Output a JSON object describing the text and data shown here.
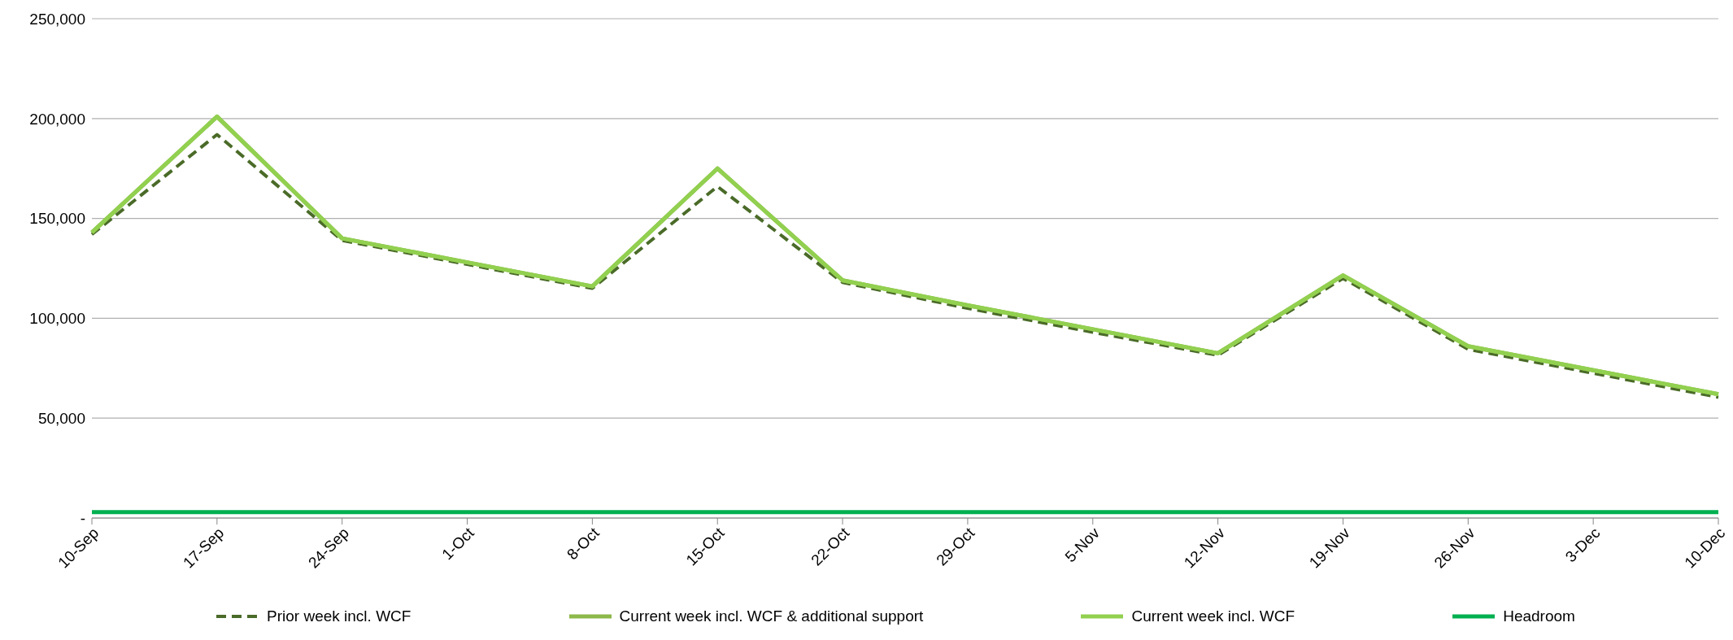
{
  "chart_data": {
    "type": "line",
    "categories": [
      "10-Sep",
      "17-Sep",
      "24-Sep",
      "1-Oct",
      "8-Oct",
      "15-Oct",
      "22-Oct",
      "29-Oct",
      "5-Nov",
      "12-Nov",
      "19-Nov",
      "26-Nov",
      "3-Dec",
      "10-Dec"
    ],
    "series": [
      {
        "name": "Prior week incl. WCF",
        "color": "#4a6b28",
        "line_style": "dashed",
        "values": [
          142000,
          192000,
          139000,
          127000,
          115000,
          166000,
          118000,
          105000,
          93000,
          81500,
          120000,
          84500,
          72500,
          60500
        ]
      },
      {
        "name": "Current week incl. WCF & additional support",
        "color": "#8db84a",
        "line_style": "solid",
        "values": [
          143000,
          201000,
          140000,
          128000,
          116000,
          175000,
          119000,
          106500,
          94500,
          82500,
          121500,
          86000,
          74000,
          62000
        ]
      },
      {
        "name": "Current week incl. WCF",
        "color": "#92d050",
        "line_style": "solid",
        "values": [
          143000,
          201000,
          140000,
          128000,
          116000,
          175000,
          119000,
          106500,
          94500,
          82500,
          121500,
          86000,
          74000,
          62000
        ]
      },
      {
        "name": "Headroom",
        "color": "#00b050",
        "line_style": "solid",
        "values": [
          3000,
          3000,
          3000,
          3000,
          3000,
          3000,
          3000,
          3000,
          3000,
          3000,
          3000,
          3000,
          3000,
          3000
        ]
      }
    ],
    "ylim": [
      0,
      250000
    ],
    "yticks": [
      {
        "value": 0,
        "label": "-"
      },
      {
        "value": 50000,
        "label": "50,000"
      },
      {
        "value": 100000,
        "label": "100,000"
      },
      {
        "value": 150000,
        "label": "150,000"
      },
      {
        "value": 200000,
        "label": "200,000"
      },
      {
        "value": 250000,
        "label": "250,000"
      }
    ],
    "grid": "y",
    "legend": "bottom",
    "marker": "none"
  }
}
